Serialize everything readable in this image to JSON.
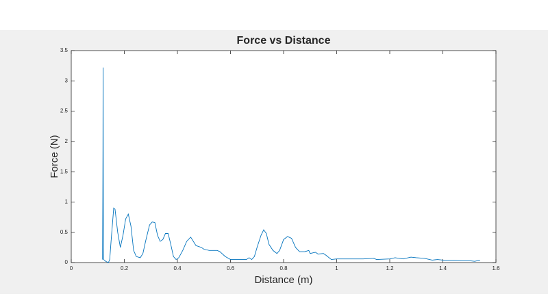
{
  "chart_data": {
    "type": "line",
    "title": "Force vs Distance",
    "x_label": "Distance (m)",
    "y_label": "Force (N)",
    "xlim": [
      0,
      1.6
    ],
    "xticks": [
      0,
      0.2,
      0.4,
      0.6,
      0.8,
      1,
      1.2,
      1.4,
      1.6
    ],
    "ylim": [
      0,
      3.5
    ],
    "yticks": [
      0,
      0.5,
      1,
      1.5,
      2,
      2.5,
      3,
      3.5
    ],
    "grid": false,
    "series": [
      {
        "name": "Force",
        "color": "#0072bd",
        "x": [
          0.118,
          0.119,
          0.1195,
          0.12,
          0.121,
          0.122,
          0.13,
          0.14,
          0.145,
          0.15,
          0.16,
          0.165,
          0.175,
          0.185,
          0.195,
          0.205,
          0.215,
          0.225,
          0.235,
          0.245,
          0.26,
          0.27,
          0.28,
          0.295,
          0.305,
          0.315,
          0.325,
          0.335,
          0.345,
          0.355,
          0.365,
          0.375,
          0.385,
          0.395,
          0.405,
          0.42,
          0.435,
          0.45,
          0.46,
          0.47,
          0.49,
          0.5,
          0.52,
          0.55,
          0.56,
          0.58,
          0.6,
          0.63,
          0.66,
          0.67,
          0.68,
          0.69,
          0.7,
          0.715,
          0.725,
          0.735,
          0.745,
          0.76,
          0.775,
          0.785,
          0.8,
          0.815,
          0.83,
          0.845,
          0.86,
          0.88,
          0.895,
          0.9,
          0.92,
          0.93,
          0.95,
          0.96,
          0.98,
          1.0,
          1.1,
          1.14,
          1.15,
          1.2,
          1.22,
          1.25,
          1.28,
          1.3,
          1.33,
          1.36,
          1.38,
          1.4,
          1.44,
          1.47,
          1.5,
          1.52,
          1.54
        ],
        "values": [
          0.05,
          1.1,
          1.9,
          3.22,
          0.25,
          0.05,
          0.02,
          0.0,
          0.05,
          0.35,
          0.9,
          0.88,
          0.5,
          0.25,
          0.45,
          0.72,
          0.8,
          0.6,
          0.2,
          0.1,
          0.08,
          0.15,
          0.35,
          0.62,
          0.67,
          0.66,
          0.45,
          0.35,
          0.38,
          0.48,
          0.48,
          0.3,
          0.1,
          0.05,
          0.08,
          0.2,
          0.35,
          0.42,
          0.35,
          0.28,
          0.25,
          0.22,
          0.2,
          0.2,
          0.18,
          0.1,
          0.05,
          0.05,
          0.05,
          0.08,
          0.05,
          0.1,
          0.25,
          0.45,
          0.54,
          0.48,
          0.3,
          0.2,
          0.15,
          0.2,
          0.38,
          0.43,
          0.4,
          0.25,
          0.18,
          0.18,
          0.2,
          0.15,
          0.17,
          0.14,
          0.15,
          0.12,
          0.05,
          0.06,
          0.06,
          0.07,
          0.05,
          0.06,
          0.08,
          0.06,
          0.09,
          0.08,
          0.07,
          0.04,
          0.05,
          0.04,
          0.04,
          0.03,
          0.03,
          0.02,
          0.04
        ]
      }
    ]
  }
}
